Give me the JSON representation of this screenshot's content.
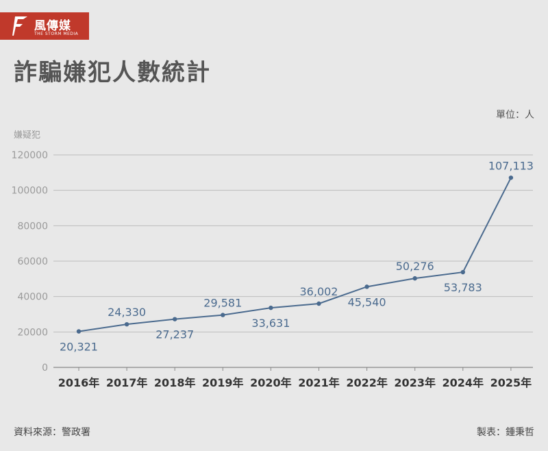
{
  "brand": {
    "name_cn": "風傳媒",
    "name_en": "THE STORM MEDIA",
    "color": "#c0392b"
  },
  "unit_label": "單位：人",
  "source_label": "資料來源：警政署",
  "maker_label": "製表：鍾秉哲",
  "chart_data": {
    "type": "line",
    "title": "詐騙嫌犯人數統計",
    "ylabel": "嫌疑犯",
    "xlabel": "",
    "categories": [
      "2016年",
      "2017年",
      "2018年",
      "2019年",
      "2020年",
      "2021年",
      "2022年",
      "2023年",
      "2024年",
      "2025年"
    ],
    "series": [
      {
        "values": [
          20321,
          24330,
          27237,
          29581,
          33631,
          36002,
          45540,
          50276,
          53783,
          107113
        ],
        "labels": [
          "20,321",
          "24,330",
          "27,237",
          "29,581",
          "33,631",
          "36,002",
          "45,540",
          "50,276",
          "53,783",
          "107,113"
        ],
        "color": "#4a6a8e"
      }
    ],
    "ylim": [
      0,
      120000
    ],
    "yticks": [
      "0",
      "20000",
      "40000",
      "60000",
      "80000",
      "100000",
      "120000"
    ],
    "label_positions": [
      "below",
      "above",
      "below",
      "above",
      "below",
      "above",
      "below",
      "above",
      "below",
      "above"
    ],
    "grid": true
  }
}
